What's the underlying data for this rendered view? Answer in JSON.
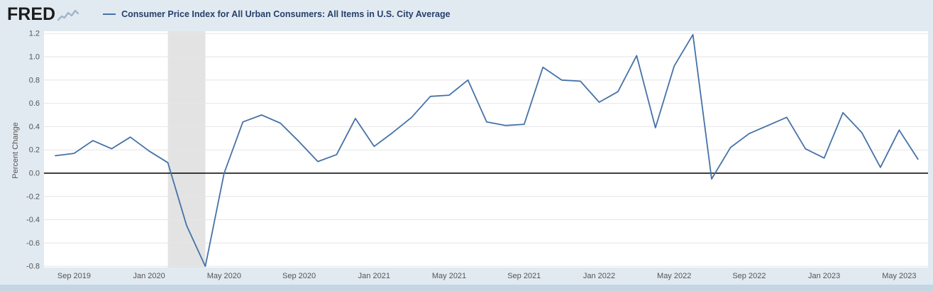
{
  "header": {
    "logo": {
      "text": "FRED",
      "icon": "fred-squiggle-chart-icon"
    },
    "legend": {
      "swatch_color": "#4572a7",
      "label": "Consumer Price Index for All Urban Consumers: All Items in U.S. City Average"
    }
  },
  "chart_data": {
    "type": "line",
    "title": "Consumer Price Index for All Urban Consumers: All Items in U.S. City Average",
    "xlabel": "",
    "ylabel": "Percent Change",
    "ylim": [
      -0.8,
      1.2
    ],
    "y_tick_step": 0.2,
    "y_tick_labels": [
      "-0.8",
      "-0.6",
      "-0.4",
      "-0.2",
      "0.0",
      "0.2",
      "0.4",
      "0.6",
      "0.8",
      "1.0",
      "1.2"
    ],
    "x_tick_labels": [
      "Sep 2019",
      "Jan 2020",
      "May 2020",
      "Sep 2020",
      "Jan 2021",
      "May 2021",
      "Sep 2021",
      "Jan 2022",
      "May 2022",
      "Sep 2022",
      "Jan 2023",
      "May 2023"
    ],
    "grid": "horizontal-only",
    "legend_position": "top-left",
    "line_color": "#4572a7",
    "zero_baseline": true,
    "recession_band": {
      "from": "Feb 2020",
      "to": "Apr 2020",
      "color": "#e3e3e3"
    },
    "x": [
      "Aug 2019",
      "Sep 2019",
      "Oct 2019",
      "Nov 2019",
      "Dec 2019",
      "Jan 2020",
      "Feb 2020",
      "Mar 2020",
      "Apr 2020",
      "May 2020",
      "Jun 2020",
      "Jul 2020",
      "Aug 2020",
      "Sep 2020",
      "Oct 2020",
      "Nov 2020",
      "Dec 2020",
      "Jan 2021",
      "Feb 2021",
      "Mar 2021",
      "Apr 2021",
      "May 2021",
      "Jun 2021",
      "Jul 2021",
      "Aug 2021",
      "Sep 2021",
      "Oct 2021",
      "Nov 2021",
      "Dec 2021",
      "Jan 2022",
      "Feb 2022",
      "Mar 2022",
      "Apr 2022",
      "May 2022",
      "Jun 2022",
      "Jul 2022",
      "Aug 2022",
      "Sep 2022",
      "Oct 2022",
      "Nov 2022",
      "Dec 2022",
      "Jan 2023",
      "Feb 2023",
      "Mar 2023",
      "Apr 2023",
      "May 2023",
      "Jun 2023"
    ],
    "values": [
      0.15,
      0.17,
      0.28,
      0.21,
      0.31,
      0.19,
      0.09,
      -0.45,
      -0.8,
      0.0,
      0.44,
      0.5,
      0.43,
      0.27,
      0.1,
      0.16,
      0.47,
      0.23,
      0.35,
      0.48,
      0.66,
      0.67,
      0.8,
      0.44,
      0.41,
      0.42,
      0.91,
      0.8,
      0.79,
      0.61,
      0.7,
      1.01,
      0.39,
      0.92,
      1.19,
      -0.05,
      0.22,
      0.34,
      0.41,
      0.48,
      0.21,
      0.13,
      0.52,
      0.35,
      0.05,
      0.37,
      0.12
    ]
  },
  "colors": {
    "page_background": "#e2eaf1",
    "plot_background": "#ffffff",
    "gridline": "#e6e6e6",
    "axis_text": "#555555",
    "legend_text": "#26416b",
    "logo_text": "#1c1c1c",
    "footer_strip": "#c4d6e4",
    "zero_line": "#000000"
  }
}
